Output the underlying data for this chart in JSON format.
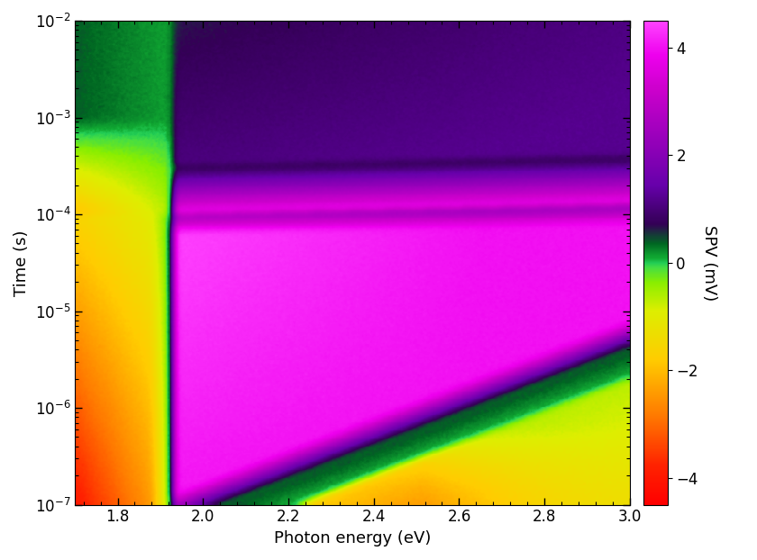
{
  "xlabel": "Photon energy (eV)",
  "ylabel": "Time (s)",
  "cbar_label": "SPV (mV)",
  "x_min": 1.7,
  "x_max": 3.0,
  "t_min_log": -7,
  "t_max_log": -2,
  "vmin": -4.5,
  "vmax": 4.5,
  "colorbar_ticks": [
    -4,
    -2,
    0,
    2,
    4
  ],
  "xticks": [
    1.8,
    2.0,
    2.2,
    2.4,
    2.6,
    2.8,
    3.0
  ],
  "yticks_log": [
    -7,
    -6,
    -5,
    -4,
    -3,
    -2
  ],
  "x_thresh": 1.93,
  "figsize": [
    8.4,
    6.22
  ],
  "dpi": 100
}
